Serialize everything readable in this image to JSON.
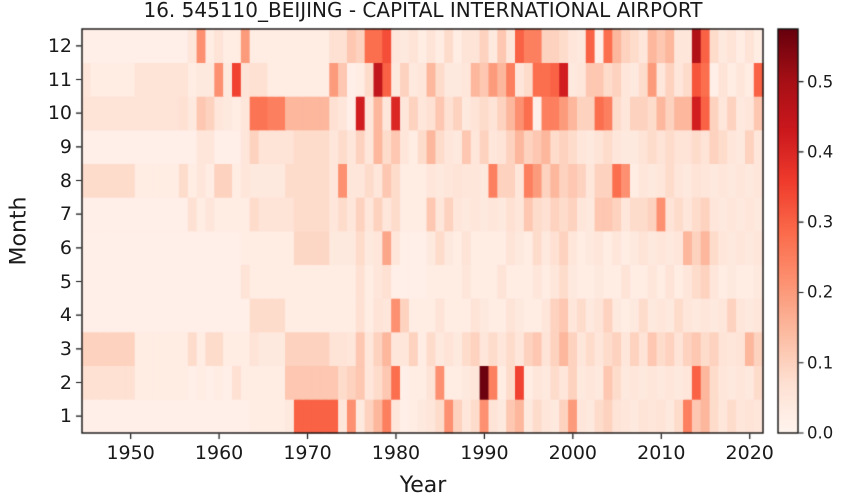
{
  "chart_data": {
    "type": "heatmap",
    "title": "16. 545110_BEIJING - CAPITAL INTERNATIONAL AIRPORT",
    "xlabel": "Year",
    "ylabel": "Month",
    "colormap": "Reds",
    "vmin": 0.0,
    "vmax": 0.575,
    "year_start": 1945,
    "year_end": 2021,
    "x_ticks": [
      1950,
      1960,
      1970,
      1980,
      1990,
      2000,
      2010,
      2020
    ],
    "y_months": [
      1,
      2,
      3,
      4,
      5,
      6,
      7,
      8,
      9,
      10,
      11,
      12
    ],
    "colorbar_ticks": [
      "0.0",
      "0.1",
      "0.2",
      "0.3",
      "0.4",
      "0.5"
    ],
    "legend_position": "right-colorbar",
    "grid": false,
    "colors": {
      "cmap_low": "#fff5f0",
      "cmap_mid": "#fb6a4a",
      "cmap_high": "#67000d",
      "frame": "#111111",
      "text": "#1a1a1a",
      "background": "#ffffff"
    },
    "values_note": "rows ordered as y_months (month 1 = bottom row of plot); columns are years year_start..year_end",
    "values": [
      [
        0.02,
        0.02,
        0.02,
        0.02,
        0.02,
        0.02,
        0.02,
        0.02,
        0.02,
        0.02,
        0.02,
        0.02,
        0.02,
        0.02,
        0.02,
        0.02,
        0.02,
        0.02,
        0.02,
        0.03,
        0.03,
        0.03,
        0.03,
        0.04,
        0.3,
        0.3,
        0.3,
        0.3,
        0.3,
        0.05,
        0.22,
        0.04,
        0.1,
        0.15,
        0.25,
        0.05,
        0.02,
        0.03,
        0.04,
        0.05,
        0.08,
        0.22,
        0.1,
        0.05,
        0.08,
        0.22,
        0.06,
        0.04,
        0.12,
        0.15,
        0.04,
        0.08,
        0.05,
        0.04,
        0.1,
        0.2,
        0.05,
        0.04,
        0.08,
        0.1,
        0.06,
        0.05,
        0.04,
        0.06,
        0.05,
        0.06,
        0.04,
        0.08,
        0.25,
        0.12,
        0.15,
        0.08,
        0.05,
        0.08,
        0.05,
        0.06,
        0.05
      ],
      [
        0.07,
        0.07,
        0.07,
        0.07,
        0.07,
        0.07,
        0.03,
        0.03,
        0.03,
        0.03,
        0.03,
        0.03,
        0.02,
        0.03,
        0.02,
        0.03,
        0.02,
        0.07,
        0.03,
        0.03,
        0.03,
        0.03,
        0.03,
        0.12,
        0.12,
        0.12,
        0.12,
        0.12,
        0.12,
        0.08,
        0.1,
        0.12,
        0.05,
        0.08,
        0.12,
        0.28,
        0.02,
        0.03,
        0.03,
        0.06,
        0.22,
        0.03,
        0.03,
        0.04,
        0.05,
        0.57,
        0.25,
        0.03,
        0.08,
        0.35,
        0.03,
        0.05,
        0.04,
        0.08,
        0.05,
        0.1,
        0.04,
        0.05,
        0.04,
        0.12,
        0.08,
        0.04,
        0.05,
        0.04,
        0.05,
        0.04,
        0.05,
        0.04,
        0.05,
        0.3,
        0.15,
        0.08,
        0.05,
        0.04,
        0.05,
        0.04,
        0.08
      ],
      [
        0.1,
        0.1,
        0.1,
        0.1,
        0.1,
        0.1,
        0.03,
        0.03,
        0.03,
        0.03,
        0.03,
        0.03,
        0.08,
        0.03,
        0.08,
        0.08,
        0.03,
        0.03,
        0.03,
        0.06,
        0.04,
        0.04,
        0.04,
        0.1,
        0.1,
        0.1,
        0.1,
        0.1,
        0.06,
        0.06,
        0.05,
        0.12,
        0.05,
        0.1,
        0.15,
        0.05,
        0.05,
        0.1,
        0.03,
        0.08,
        0.04,
        0.06,
        0.04,
        0.08,
        0.1,
        0.05,
        0.08,
        0.05,
        0.08,
        0.05,
        0.1,
        0.12,
        0.06,
        0.1,
        0.15,
        0.1,
        0.05,
        0.08,
        0.05,
        0.08,
        0.1,
        0.05,
        0.1,
        0.06,
        0.12,
        0.08,
        0.1,
        0.06,
        0.1,
        0.12,
        0.08,
        0.1,
        0.06,
        0.05,
        0.06,
        0.15,
        0.1
      ],
      [
        0.02,
        0.02,
        0.02,
        0.02,
        0.02,
        0.02,
        0.02,
        0.02,
        0.02,
        0.02,
        0.02,
        0.02,
        0.02,
        0.02,
        0.02,
        0.02,
        0.02,
        0.02,
        0.02,
        0.08,
        0.08,
        0.08,
        0.08,
        0.03,
        0.03,
        0.03,
        0.03,
        0.03,
        0.03,
        0.03,
        0.03,
        0.07,
        0.03,
        0.06,
        0.05,
        0.22,
        0.1,
        0.03,
        0.03,
        0.03,
        0.06,
        0.03,
        0.03,
        0.03,
        0.06,
        0.04,
        0.03,
        0.03,
        0.06,
        0.04,
        0.03,
        0.03,
        0.05,
        0.1,
        0.12,
        0.05,
        0.08,
        0.04,
        0.06,
        0.1,
        0.04,
        0.03,
        0.04,
        0.08,
        0.04,
        0.05,
        0.04,
        0.08,
        0.05,
        0.04,
        0.05,
        0.04,
        0.05,
        0.1,
        0.05,
        0.04,
        0.05
      ],
      [
        0.02,
        0.02,
        0.02,
        0.02,
        0.02,
        0.02,
        0.02,
        0.02,
        0.02,
        0.02,
        0.02,
        0.02,
        0.02,
        0.02,
        0.02,
        0.02,
        0.02,
        0.02,
        0.06,
        0.03,
        0.03,
        0.03,
        0.03,
        0.03,
        0.03,
        0.03,
        0.03,
        0.03,
        0.03,
        0.03,
        0.03,
        0.07,
        0.03,
        0.05,
        0.07,
        0.02,
        0.02,
        0.02,
        0.02,
        0.03,
        0.03,
        0.03,
        0.03,
        0.05,
        0.03,
        0.03,
        0.03,
        0.06,
        0.03,
        0.03,
        0.03,
        0.05,
        0.03,
        0.05,
        0.08,
        0.04,
        0.03,
        0.03,
        0.04,
        0.03,
        0.03,
        0.06,
        0.03,
        0.03,
        0.05,
        0.03,
        0.06,
        0.03,
        0.05,
        0.08,
        0.1,
        0.05,
        0.03,
        0.04,
        0.03,
        0.03,
        0.04
      ],
      [
        0.02,
        0.02,
        0.02,
        0.02,
        0.02,
        0.02,
        0.02,
        0.02,
        0.02,
        0.02,
        0.02,
        0.02,
        0.02,
        0.02,
        0.02,
        0.02,
        0.02,
        0.02,
        0.03,
        0.03,
        0.03,
        0.03,
        0.03,
        0.03,
        0.09,
        0.09,
        0.09,
        0.09,
        0.04,
        0.04,
        0.04,
        0.08,
        0.04,
        0.05,
        0.18,
        0.05,
        0.02,
        0.02,
        0.02,
        0.04,
        0.08,
        0.04,
        0.03,
        0.06,
        0.03,
        0.03,
        0.03,
        0.03,
        0.06,
        0.04,
        0.03,
        0.08,
        0.04,
        0.07,
        0.1,
        0.05,
        0.03,
        0.04,
        0.05,
        0.03,
        0.05,
        0.03,
        0.04,
        0.06,
        0.04,
        0.05,
        0.04,
        0.05,
        0.15,
        0.1,
        0.15,
        0.08,
        0.05,
        0.04,
        0.05,
        0.04,
        0.05
      ],
      [
        0.02,
        0.02,
        0.02,
        0.02,
        0.02,
        0.02,
        0.02,
        0.02,
        0.02,
        0.02,
        0.02,
        0.02,
        0.07,
        0.03,
        0.05,
        0.03,
        0.03,
        0.03,
        0.03,
        0.08,
        0.06,
        0.06,
        0.06,
        0.06,
        0.08,
        0.08,
        0.08,
        0.08,
        0.05,
        0.08,
        0.05,
        0.1,
        0.05,
        0.1,
        0.05,
        0.08,
        0.03,
        0.03,
        0.03,
        0.12,
        0.05,
        0.1,
        0.05,
        0.04,
        0.05,
        0.04,
        0.05,
        0.04,
        0.07,
        0.05,
        0.12,
        0.08,
        0.07,
        0.1,
        0.08,
        0.1,
        0.05,
        0.04,
        0.12,
        0.12,
        0.1,
        0.05,
        0.08,
        0.08,
        0.1,
        0.22,
        0.06,
        0.08,
        0.05,
        0.08,
        0.1,
        0.05,
        0.04,
        0.05,
        0.04,
        0.05,
        0.04
      ],
      [
        0.08,
        0.08,
        0.08,
        0.08,
        0.08,
        0.08,
        0.03,
        0.03,
        0.03,
        0.03,
        0.03,
        0.08,
        0.03,
        0.05,
        0.03,
        0.1,
        0.1,
        0.03,
        0.05,
        0.04,
        0.04,
        0.04,
        0.04,
        0.08,
        0.08,
        0.08,
        0.08,
        0.08,
        0.05,
        0.22,
        0.05,
        0.05,
        0.08,
        0.05,
        0.12,
        0.08,
        0.03,
        0.03,
        0.03,
        0.05,
        0.04,
        0.05,
        0.06,
        0.05,
        0.05,
        0.04,
        0.25,
        0.1,
        0.1,
        0.05,
        0.25,
        0.2,
        0.1,
        0.15,
        0.1,
        0.12,
        0.1,
        0.05,
        0.1,
        0.1,
        0.28,
        0.22,
        0.03,
        0.05,
        0.04,
        0.05,
        0.08,
        0.05,
        0.04,
        0.06,
        0.05,
        0.04,
        0.05,
        0.04,
        0.05,
        0.04,
        0.05
      ],
      [
        0.02,
        0.02,
        0.02,
        0.02,
        0.02,
        0.02,
        0.02,
        0.02,
        0.02,
        0.02,
        0.02,
        0.02,
        0.02,
        0.05,
        0.05,
        0.02,
        0.02,
        0.02,
        0.05,
        0.1,
        0.06,
        0.06,
        0.06,
        0.06,
        0.08,
        0.08,
        0.08,
        0.08,
        0.05,
        0.08,
        0.05,
        0.1,
        0.05,
        0.15,
        0.08,
        0.12,
        0.05,
        0.03,
        0.08,
        0.15,
        0.08,
        0.05,
        0.04,
        0.12,
        0.05,
        0.1,
        0.05,
        0.06,
        0.1,
        0.15,
        0.1,
        0.12,
        0.15,
        0.08,
        0.1,
        0.08,
        0.05,
        0.04,
        0.06,
        0.08,
        0.05,
        0.04,
        0.04,
        0.06,
        0.08,
        0.06,
        0.08,
        0.06,
        0.06,
        0.08,
        0.06,
        0.1,
        0.08,
        0.05,
        0.04,
        0.1,
        0.05
      ],
      [
        0.06,
        0.06,
        0.06,
        0.06,
        0.06,
        0.06,
        0.06,
        0.06,
        0.06,
        0.06,
        0.06,
        0.07,
        0.04,
        0.12,
        0.1,
        0.05,
        0.04,
        0.03,
        0.05,
        0.27,
        0.27,
        0.25,
        0.25,
        0.15,
        0.15,
        0.15,
        0.15,
        0.15,
        0.07,
        0.05,
        0.02,
        0.42,
        0.05,
        0.15,
        0.05,
        0.4,
        0.05,
        0.1,
        0.05,
        0.07,
        0.12,
        0.07,
        0.1,
        0.04,
        0.06,
        0.08,
        0.06,
        0.1,
        0.15,
        0.22,
        0.28,
        0.02,
        0.25,
        0.25,
        0.2,
        0.15,
        0.1,
        0.1,
        0.28,
        0.25,
        0.08,
        0.05,
        0.1,
        0.1,
        0.08,
        0.15,
        0.1,
        0.15,
        0.15,
        0.42,
        0.3,
        0.1,
        0.05,
        0.1,
        0.04,
        0.05,
        0.12
      ],
      [
        0.05,
        0.03,
        0.03,
        0.03,
        0.03,
        0.03,
        0.06,
        0.06,
        0.06,
        0.06,
        0.06,
        0.06,
        0.03,
        0.04,
        0.04,
        0.22,
        0.04,
        0.35,
        0.06,
        0.07,
        0.07,
        0.03,
        0.03,
        0.03,
        0.03,
        0.03,
        0.03,
        0.03,
        0.2,
        0.12,
        0.02,
        0.03,
        0.08,
        0.45,
        0.3,
        0.04,
        0.1,
        0.04,
        0.05,
        0.15,
        0.08,
        0.04,
        0.04,
        0.05,
        0.15,
        0.12,
        0.2,
        0.15,
        0.25,
        0.05,
        0.08,
        0.28,
        0.28,
        0.3,
        0.42,
        0.04,
        0.05,
        0.12,
        0.12,
        0.08,
        0.1,
        0.05,
        0.04,
        0.08,
        0.2,
        0.05,
        0.1,
        0.05,
        0.08,
        0.32,
        0.28,
        0.02,
        0.06,
        0.03,
        0.05,
        0.03,
        0.3
      ],
      [
        0.02,
        0.02,
        0.02,
        0.02,
        0.02,
        0.02,
        0.02,
        0.02,
        0.02,
        0.02,
        0.02,
        0.02,
        0.05,
        0.22,
        0.03,
        0.06,
        0.03,
        0.03,
        0.2,
        0.03,
        0.03,
        0.03,
        0.03,
        0.03,
        0.03,
        0.03,
        0.03,
        0.03,
        0.07,
        0.07,
        0.12,
        0.1,
        0.28,
        0.28,
        0.33,
        0.05,
        0.04,
        0.06,
        0.03,
        0.06,
        0.03,
        0.08,
        0.03,
        0.06,
        0.06,
        0.1,
        0.04,
        0.12,
        0.05,
        0.3,
        0.25,
        0.25,
        0.1,
        0.1,
        0.08,
        0.05,
        0.04,
        0.3,
        0.02,
        0.28,
        0.15,
        0.1,
        0.08,
        0.05,
        0.15,
        0.12,
        0.15,
        0.05,
        0.05,
        0.48,
        0.3,
        0.08,
        0.04,
        0.06,
        0.03,
        0.06,
        0.03
      ]
    ]
  }
}
